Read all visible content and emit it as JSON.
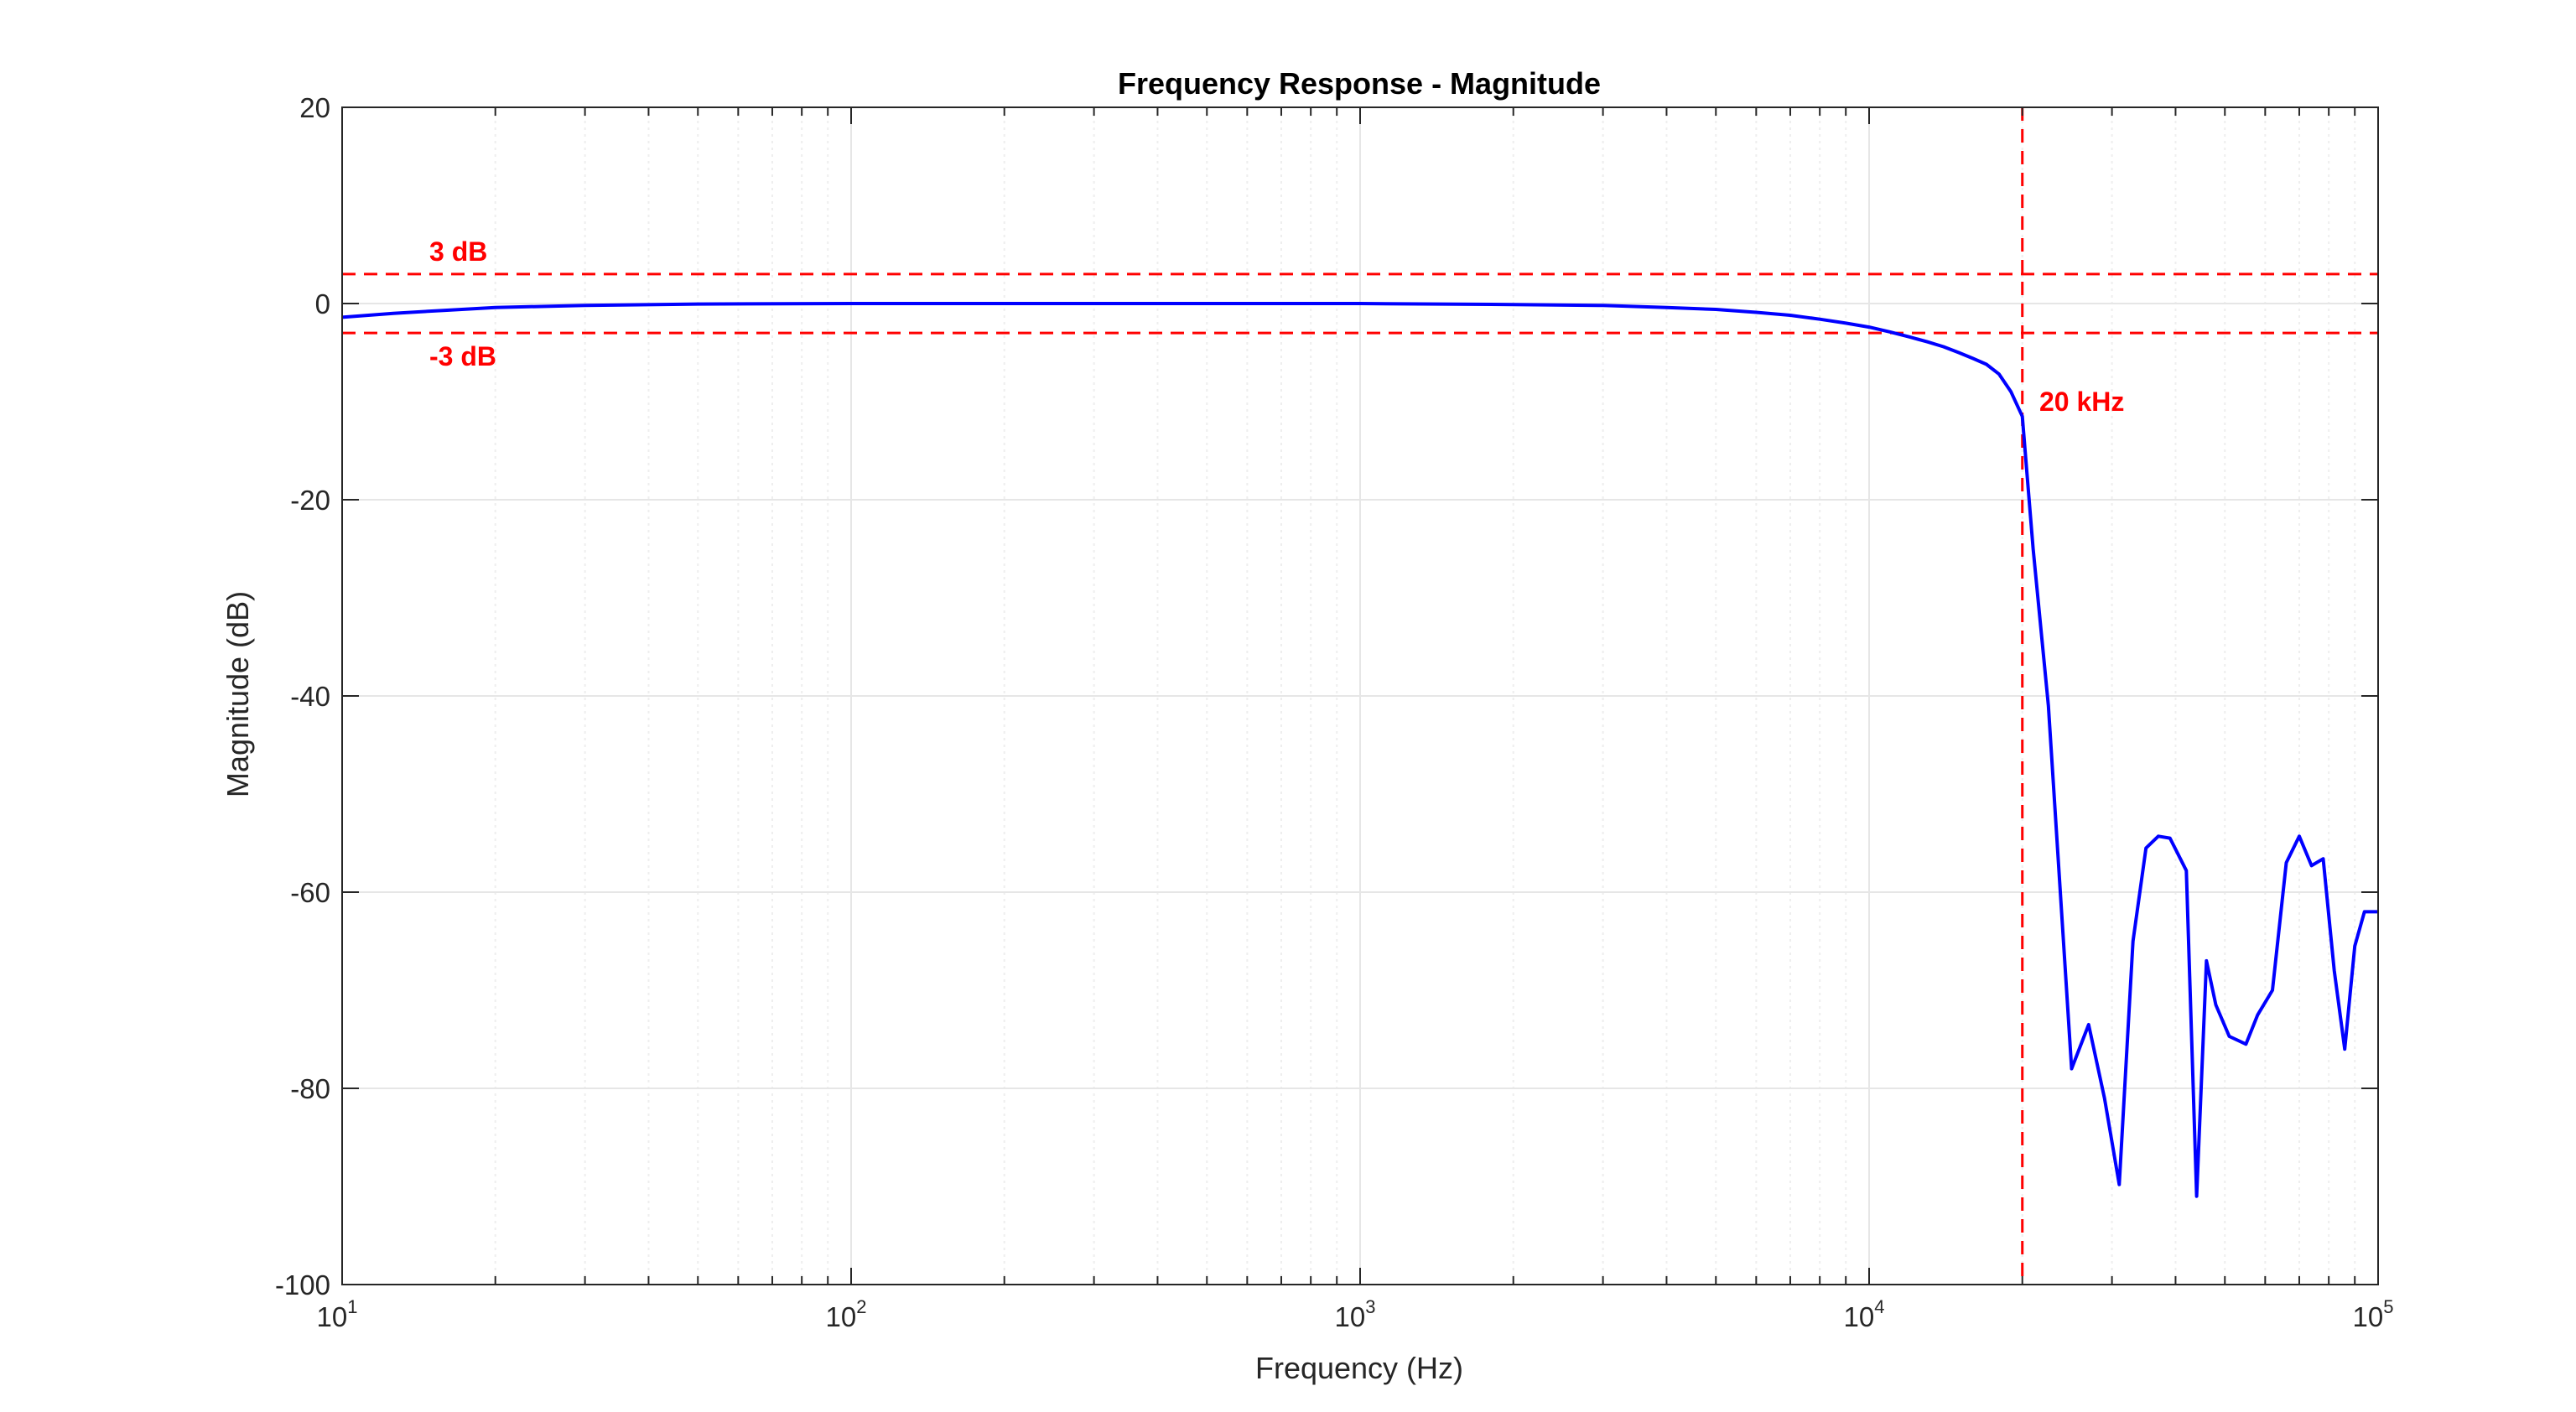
{
  "chart_data": {
    "type": "line",
    "title": "Frequency Response - Magnitude",
    "xlabel": "Frequency (Hz)",
    "ylabel": "Magnitude (dB)",
    "xscale": "log",
    "xlim": [
      10,
      100000
    ],
    "ylim": [
      -100,
      20
    ],
    "grid": true,
    "x_tick_labels": [
      {
        "base": "10",
        "exp": "1"
      },
      {
        "base": "10",
        "exp": "2"
      },
      {
        "base": "10",
        "exp": "3"
      },
      {
        "base": "10",
        "exp": "4"
      },
      {
        "base": "10",
        "exp": "5"
      }
    ],
    "y_ticks": [
      20,
      0,
      -20,
      -40,
      -60,
      -80,
      -100
    ],
    "y_tick_labels": [
      "20",
      "0",
      "-20",
      "-40",
      "-60",
      "-80",
      "-100"
    ],
    "series": [
      {
        "color": "#0000ff",
        "x": [
          10,
          12.6,
          15.8,
          20,
          30,
          50,
          100,
          200,
          500,
          1000,
          2000,
          3000,
          4000,
          5000,
          6000,
          7000,
          8000,
          9000,
          10000,
          11000,
          12000,
          13000,
          14000,
          15000,
          16000,
          17000,
          18000,
          19000,
          20000,
          21000,
          22500,
          25000,
          27000,
          29000,
          31000,
          33000,
          35000,
          37000,
          39000,
          42000,
          44000,
          46000,
          48000,
          51000,
          55000,
          58000,
          62000,
          66000,
          70000,
          74000,
          78000,
          82000,
          86000,
          90000,
          94000,
          97000,
          100000
        ],
        "y": [
          -1.4,
          -1.0,
          -0.7,
          -0.4,
          -0.2,
          -0.05,
          0,
          0,
          0,
          0,
          -0.1,
          -0.2,
          -0.4,
          -0.6,
          -0.9,
          -1.2,
          -1.6,
          -2.0,
          -2.4,
          -2.9,
          -3.4,
          -3.9,
          -4.4,
          -5.0,
          -5.6,
          -6.2,
          -7.2,
          -9.0,
          -11.5,
          -25.0,
          -41.0,
          -78.0,
          -73.5,
          -81.0,
          -89.8,
          -65.0,
          -55.5,
          -54.3,
          -54.5,
          -57.8,
          -91.0,
          -67.0,
          -71.5,
          -74.7,
          -75.5,
          -72.5,
          -70.0,
          -57.0,
          -54.3,
          -57.3,
          -56.6,
          -68.0,
          -76.0,
          -65.5,
          -62.0,
          -62.0,
          -62.0
        ]
      }
    ],
    "reference_lines": {
      "color": "#ff0000",
      "horizontal": [
        3,
        -3
      ],
      "vertical": [
        20000
      ]
    },
    "annotations": {
      "upper_label": "3 dB",
      "lower_label": "-3 dB",
      "vertical_label": "20 kHz"
    }
  }
}
